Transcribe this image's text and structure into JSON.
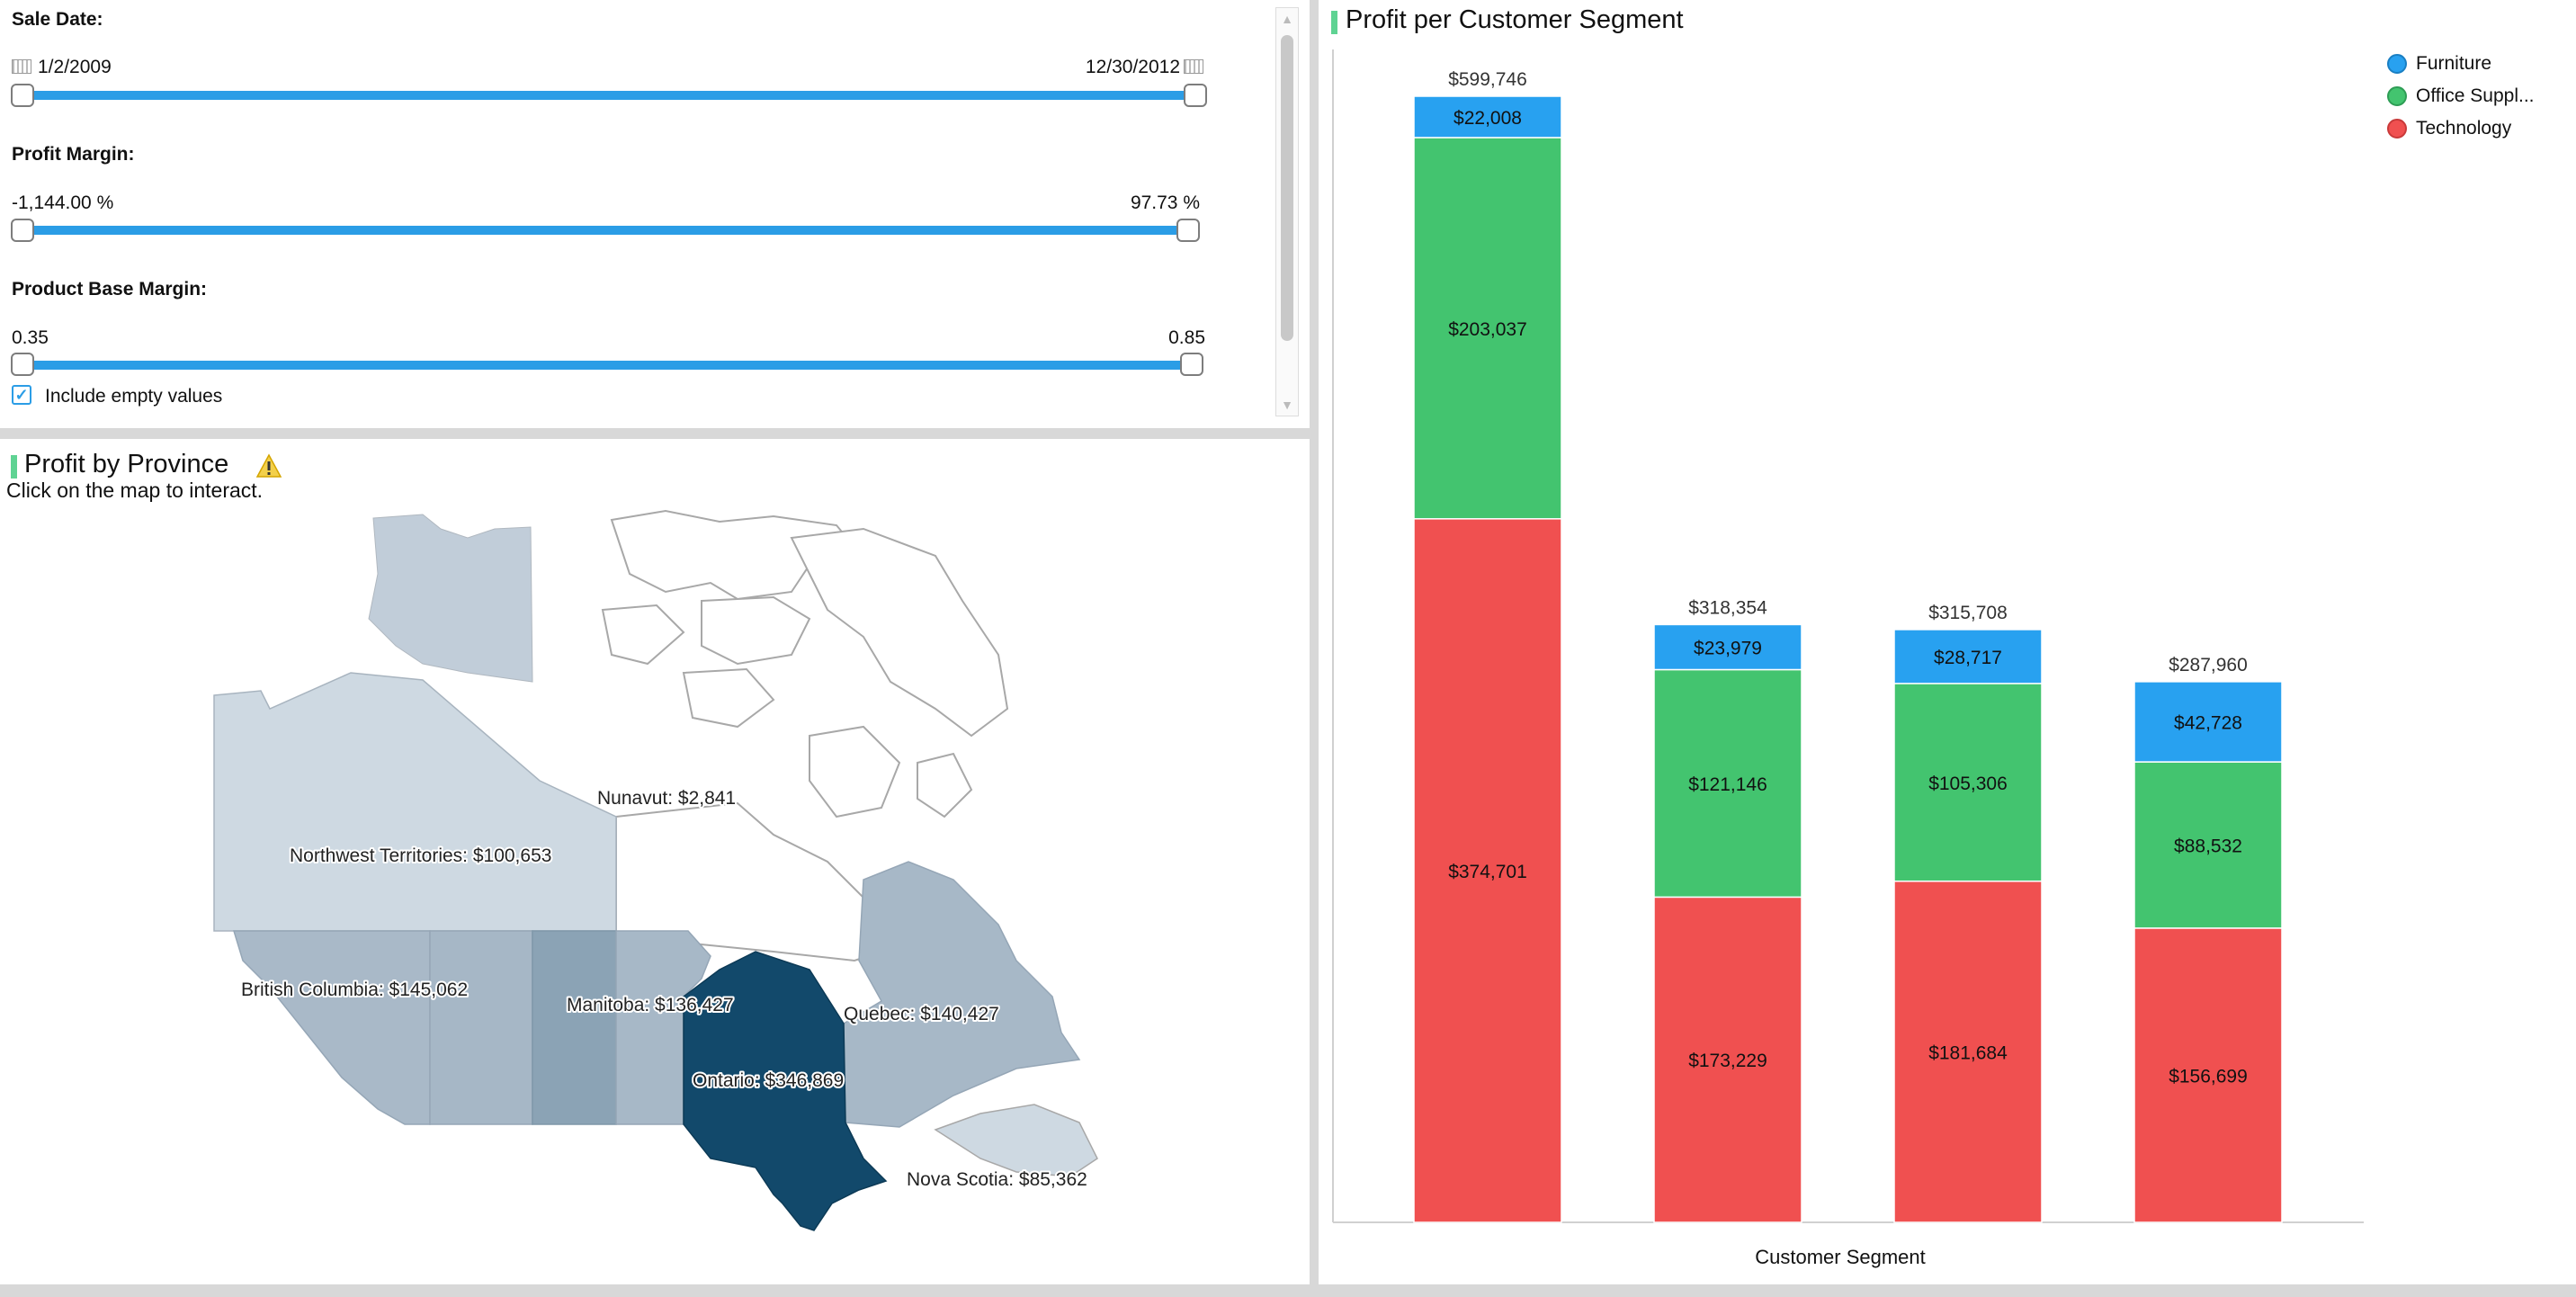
{
  "filters": {
    "sale_date": {
      "label": "Sale Date:",
      "min": "1/2/2009",
      "max": "12/30/2012"
    },
    "profit_margin": {
      "label": "Profit Margin:",
      "min": "-1,144.00 %",
      "max": "97.73 %"
    },
    "product_base_margin": {
      "label": "Product Base Margin:",
      "min": "0.35",
      "max": "0.85"
    },
    "include_empty": {
      "label": "Include empty values",
      "checked": true
    }
  },
  "map": {
    "title": "Profit by Province",
    "subtitle": "Click on the map to interact.",
    "labels": {
      "nunavut": "Nunavut: $2,841",
      "nwt": "Northwest Territories: $100,653",
      "bc": "British Columbia: $145,062",
      "manitoba": "Manitoba: $136,427",
      "quebec": "Quebec: $140,427",
      "ontario": "Ontario: $346,869",
      "nova_scotia": "Nova Scotia: $85,362"
    }
  },
  "chart_data": {
    "type": "bar",
    "stacked": true,
    "title": "Profit per Customer Segment",
    "xlabel": "Customer Segment",
    "ylabel": "",
    "categories": [
      "",
      "",
      "",
      ""
    ],
    "series": [
      {
        "name": "Technology",
        "color": "#f05050",
        "values": [
          374701,
          173229,
          181684,
          156699
        ],
        "labels": [
          "$374,701",
          "$173,229",
          "$181,684",
          "$156,699"
        ]
      },
      {
        "name": "Office Suppl...",
        "color": "#43c46f",
        "values": [
          203037,
          121146,
          105306,
          88532
        ],
        "labels": [
          "$203,037",
          "$121,146",
          "$105,306",
          "$88,532"
        ]
      },
      {
        "name": "Furniture",
        "color": "#28a1f0",
        "values": [
          22008,
          23979,
          28717,
          42728
        ],
        "labels": [
          "$22,008",
          "$23,979",
          "$28,717",
          "$42,728"
        ]
      }
    ],
    "totals": [
      599746,
      318354,
      315708,
      287960
    ],
    "total_labels": [
      "$599,746",
      "$318,354",
      "$315,708",
      "$287,960"
    ],
    "legend_position": "top-right",
    "grid": false
  }
}
